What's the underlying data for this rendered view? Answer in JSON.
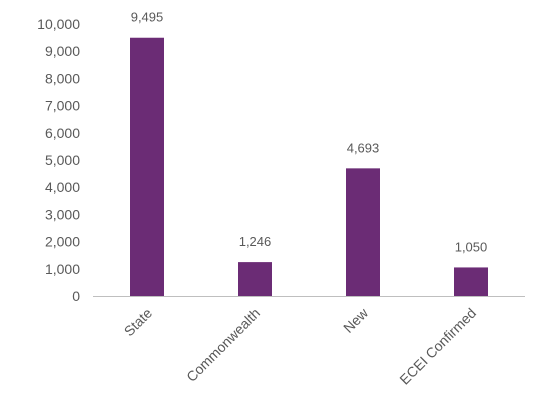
{
  "chart_data": {
    "type": "bar",
    "title": "",
    "xlabel": "",
    "ylabel": "",
    "categories": [
      "State",
      "Commonwealth",
      "New",
      "ECEI Confirmed"
    ],
    "values": [
      9495,
      1246,
      4693,
      1050
    ],
    "value_labels": [
      "9,495",
      "1,246",
      "4,693",
      "1,050"
    ],
    "ylim": [
      0,
      10000
    ],
    "yticks": [
      "0",
      "1,000",
      "2,000",
      "3,000",
      "4,000",
      "5,000",
      "6,000",
      "7,000",
      "8,000",
      "9,000",
      "10,000"
    ],
    "bar_color": "#6B2C75",
    "axis_color": "#BFBFBF",
    "text_color": "#595959",
    "grid": false,
    "legend": "none"
  }
}
